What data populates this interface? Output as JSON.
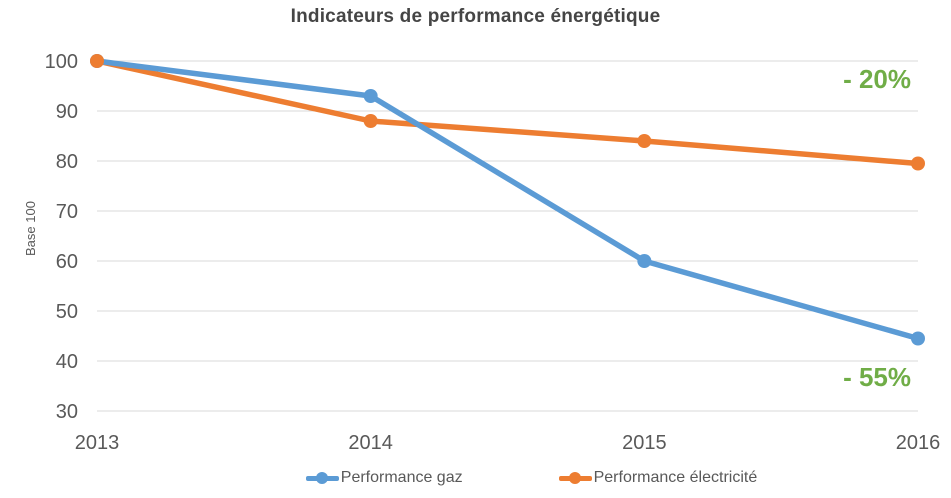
{
  "chart_data": {
    "type": "line",
    "title": "Indicateurs de performance énergétique",
    "ylabel": "Base 100",
    "xlabel": "",
    "categories": [
      "2013",
      "2014",
      "2015",
      "2016"
    ],
    "series": [
      {
        "name": "Performance gaz",
        "color": "#5B9BD5",
        "values": [
          100,
          93,
          60,
          44.5
        ]
      },
      {
        "name": "Performance électricité",
        "color": "#ED7D31",
        "values": [
          100,
          88,
          84,
          79.5
        ]
      }
    ],
    "yticks": [
      100,
      90,
      80,
      70,
      60,
      50,
      40,
      30
    ],
    "ylim": [
      30,
      100
    ],
    "grid": true,
    "gridline_color": "#D9D9D9",
    "legend_position": "bottom",
    "annotations": [
      {
        "text": "- 20%",
        "color": "#70AD47",
        "refers_to": "Performance électricité"
      },
      {
        "text": "- 55%",
        "color": "#70AD47",
        "refers_to": "Performance gaz"
      }
    ]
  }
}
